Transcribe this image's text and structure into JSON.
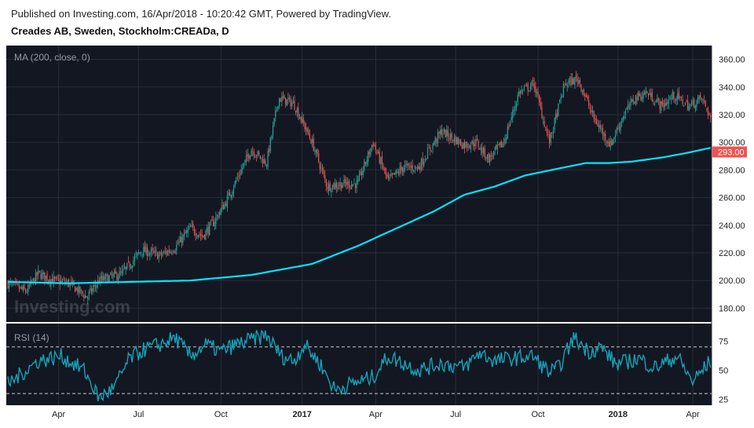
{
  "header": {
    "published": "Published on Investing.com, 16/Apr/2018 - 10:20:42 GMT, Powered by TradingView.",
    "symbol": "Creades AB, Sweden, Stockholm:CREADa, D"
  },
  "watermark": "Investing.com",
  "colors": {
    "background": "#131722",
    "up": "#26a69a",
    "down": "#ef5350",
    "ma": "#00e5ff",
    "rsi": "#17a2b8",
    "price_badge": "#ef5350"
  },
  "chart_data": [
    {
      "type": "candlestick",
      "indicator_label": "MA (200, close, 0)",
      "ylim": [
        170,
        370
      ],
      "y_ticks": [
        "360.00",
        "340.00",
        "320.00",
        "300.00",
        "280.00",
        "260.00",
        "240.00",
        "220.00",
        "200.00",
        "180.00"
      ],
      "last_price": "293.00",
      "grid": true,
      "price_keypoints": {
        "x_trading_days": [
          0,
          12,
          20,
          30,
          40,
          52,
          60,
          75,
          88,
          100,
          110,
          120,
          128,
          135,
          143,
          150,
          160,
          170,
          178,
          188,
          200,
          210,
          220,
          230,
          240,
          250,
          260,
          270,
          285,
          300,
          308,
          316,
          326,
          336,
          346,
          356,
          366,
          375,
          385,
          396,
          405,
          412,
          420,
          430,
          438,
          448,
          456,
          462
        ],
        "close": [
          198,
          192,
          205,
          200,
          198,
          188,
          200,
          205,
          222,
          218,
          224,
          238,
          232,
          242,
          256,
          272,
          295,
          285,
          332,
          328,
          300,
          268,
          270,
          270,
          300,
          272,
          282,
          282,
          308,
          298,
          300,
          288,
          300,
          336,
          342,
          300,
          342,
          346,
          318,
          298,
          320,
          332,
          336,
          326,
          334,
          326,
          332,
          318
        ]
      },
      "ma_keypoints": {
        "x_trading_days": [
          0,
          40,
          80,
          120,
          160,
          200,
          230,
          260,
          280,
          300,
          320,
          340,
          362,
          380,
          395,
          410,
          430,
          445,
          462
        ],
        "ma": [
          199,
          198,
          199,
          200,
          204,
          212,
          225,
          240,
          250,
          262,
          268,
          276,
          281,
          285,
          285,
          286,
          289,
          292,
          296
        ]
      }
    },
    {
      "type": "line",
      "indicator_label": "RSI (14)",
      "ylim": [
        20,
        90
      ],
      "y_ticks": [
        "75",
        "50",
        "25"
      ],
      "levels": [
        70,
        30
      ],
      "keypoints": {
        "x_trading_days": [
          0,
          10,
          20,
          35,
          50,
          60,
          70,
          80,
          90,
          100,
          110,
          120,
          130,
          140,
          150,
          160,
          170,
          180,
          188,
          195,
          205,
          215,
          225,
          240,
          250,
          270,
          285,
          300,
          310,
          320,
          330,
          345,
          356,
          362,
          372,
          382,
          390,
          400,
          415,
          425,
          440,
          450,
          462
        ],
        "rsi": [
          38,
          48,
          58,
          62,
          50,
          26,
          35,
          60,
          68,
          72,
          78,
          62,
          72,
          66,
          72,
          76,
          80,
          62,
          58,
          72,
          56,
          33,
          38,
          44,
          62,
          50,
          56,
          52,
          65,
          58,
          60,
          62,
          48,
          52,
          78,
          66,
          70,
          55,
          60,
          52,
          62,
          40,
          58
        ]
      }
    }
  ],
  "x_axis": {
    "labels": [
      {
        "text": "Apr",
        "day": 40
      },
      {
        "text": "Jul",
        "day": 103
      },
      {
        "text": "Oct",
        "day": 168
      },
      {
        "text": "2017",
        "day": 232
      },
      {
        "text": "Apr",
        "day": 290
      },
      {
        "text": "Jul",
        "day": 353
      },
      {
        "text": "Oct",
        "day": 418
      },
      {
        "text": "2018",
        "day": 481
      },
      {
        "text": "Apr",
        "day": 540
      }
    ]
  }
}
